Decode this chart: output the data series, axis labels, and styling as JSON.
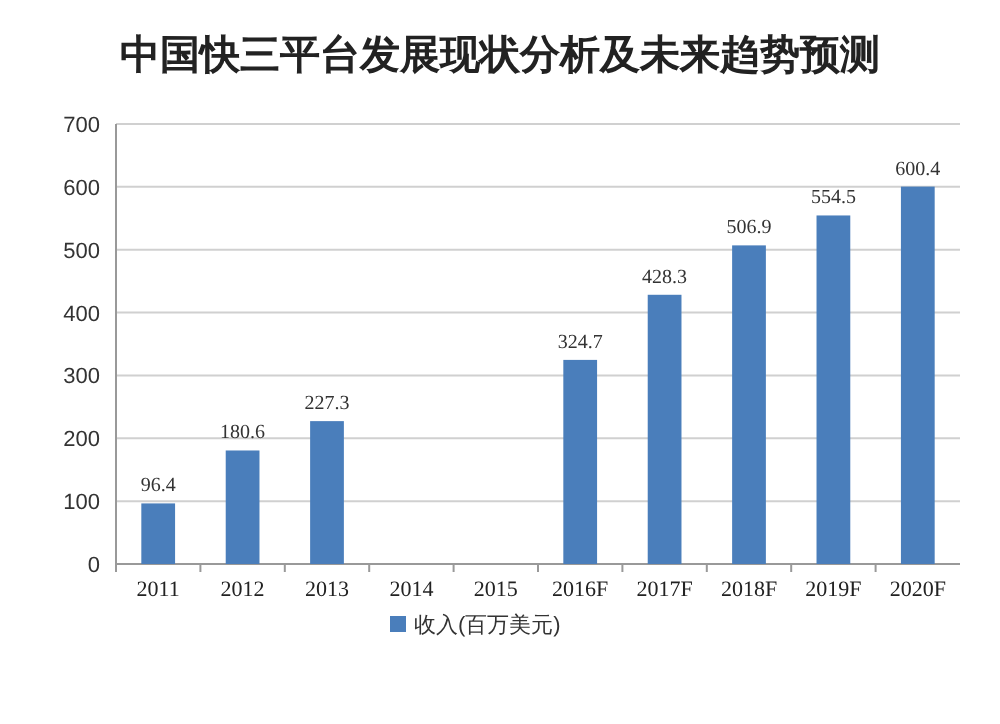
{
  "chart_data": {
    "type": "bar",
    "title": "中国快三平台发展现状分析及未来趋势预测",
    "categories": [
      "2011",
      "2012",
      "2013",
      "2014",
      "2015",
      "2016F",
      "2017F",
      "2018F",
      "2019F",
      "2020F"
    ],
    "series": [
      {
        "name": "收入(百万美元)",
        "color": "#4a7ebb",
        "values": [
          96.4,
          180.6,
          227.3,
          null,
          null,
          324.7,
          428.3,
          506.9,
          554.5,
          600.4
        ],
        "value_labels": [
          "96.4",
          "180.6",
          "227.3",
          null,
          null,
          "324.7",
          "428.3",
          "506.9",
          "554.5",
          "600.4"
        ]
      }
    ],
    "ylim": [
      0,
      700
    ],
    "yticks": [
      0,
      100,
      200,
      300,
      400,
      500,
      600,
      700
    ],
    "grid": "y",
    "legend": "bottom"
  }
}
